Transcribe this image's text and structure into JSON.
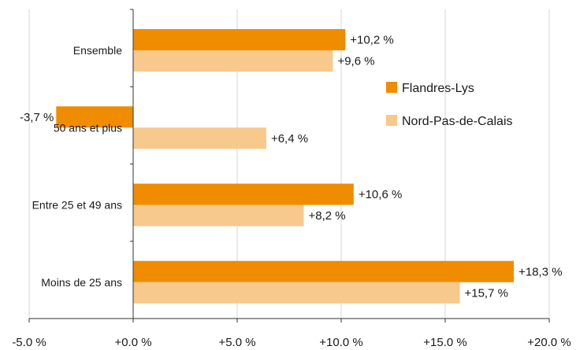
{
  "chart_data": {
    "type": "bar",
    "orientation": "horizontal",
    "categories": [
      "Ensemble",
      "50 ans et plus",
      "Entre 25 et 49 ans",
      "Moins de 25 ans"
    ],
    "series": [
      {
        "name": "Flandres-Lys",
        "values": [
          10.2,
          -3.7,
          10.6,
          18.3
        ],
        "labels": [
          "+10,2 %",
          "-3,7 %",
          "+10,6 %",
          "+18,3 %"
        ]
      },
      {
        "name": "Nord-Pas-de-Calais",
        "values": [
          9.6,
          6.4,
          8.2,
          15.7
        ],
        "labels": [
          "+9,6 %",
          "+6,4 %",
          "+8,2 %",
          "+15,7 %"
        ]
      }
    ],
    "xlim": [
      -5,
      20
    ],
    "xticks": [
      -5,
      0,
      5,
      10,
      15,
      20
    ],
    "xtick_labels": [
      "-5.0 %",
      "+0.0 %",
      "+5.0 %",
      "+10.0 %",
      "+15.0 %",
      "+20.0 %"
    ],
    "grid": "vertical",
    "legend": "right",
    "title": "",
    "xlabel": "",
    "ylabel": ""
  },
  "colors": {
    "series": [
      "#f08c00",
      "#f7c98c"
    ],
    "grid": "#d4d4d4",
    "axis": "#333333"
  }
}
